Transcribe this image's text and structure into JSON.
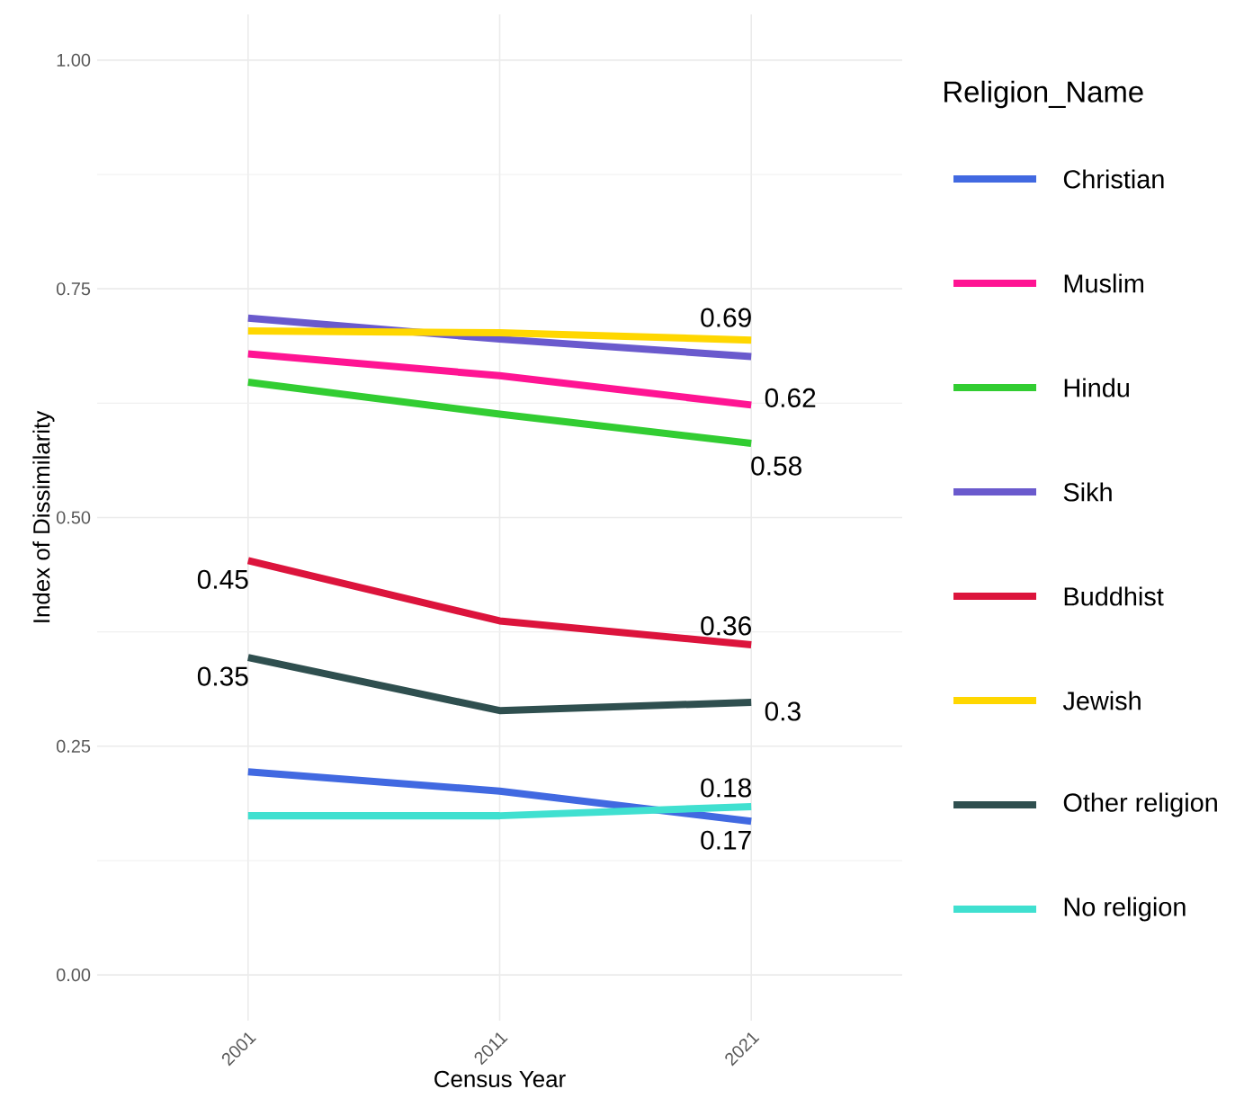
{
  "chart_data": {
    "type": "line",
    "xlabel": "Census Year",
    "ylabel": "Index of Dissimilarity",
    "legend_title": "Religion_Name",
    "x": [
      2001,
      2011,
      2021
    ],
    "xlim": [
      1995,
      2027
    ],
    "xticks": [
      2001,
      2011,
      2021
    ],
    "ylim": [
      -0.05,
      1.05
    ],
    "yticks": [
      {
        "value": 0,
        "label": "0.00"
      },
      {
        "value": 0.25,
        "label": "0.25"
      },
      {
        "value": 0.5,
        "label": "0.50"
      },
      {
        "value": 0.75,
        "label": "0.75"
      },
      {
        "value": 1,
        "label": "1.00"
      }
    ],
    "grid": true,
    "legend": "right",
    "line_style": "solid",
    "marker": "none",
    "series": [
      {
        "name": "Christian",
        "color": "#4169e1",
        "values": [
          0.222,
          0.201,
          0.168
        ],
        "value_labels": [
          null,
          null,
          "0.17"
        ]
      },
      {
        "name": "Muslim",
        "color": "#ff1493",
        "values": [
          0.679,
          0.655,
          0.623
        ],
        "value_labels": [
          null,
          null,
          "0.62"
        ]
      },
      {
        "name": "Hindu",
        "color": "#32cd32",
        "values": [
          0.648,
          0.613,
          0.581
        ],
        "value_labels": [
          null,
          null,
          "0.58"
        ]
      },
      {
        "name": "Sikh",
        "color": "#6a5acd",
        "values": [
          0.718,
          0.695,
          0.676
        ]
      },
      {
        "name": "Buddhist",
        "color": "#dc143c",
        "values": [
          0.453,
          0.387,
          0.361
        ],
        "value_labels": [
          "0.45",
          null,
          "0.36"
        ]
      },
      {
        "name": "Jewish",
        "color": "#ffd700",
        "values": [
          0.704,
          0.702,
          0.694
        ],
        "value_labels": [
          null,
          null,
          "0.69"
        ]
      },
      {
        "name": "Other religion",
        "color": "#2f4f4f",
        "values": [
          0.347,
          0.289,
          0.298
        ],
        "value_labels": [
          "0.35",
          null,
          "0.3"
        ]
      },
      {
        "name": "No religion",
        "color": "#40e0d0",
        "values": [
          0.174,
          0.174,
          0.184
        ],
        "value_labels": [
          null,
          null,
          "0.18"
        ]
      }
    ]
  }
}
